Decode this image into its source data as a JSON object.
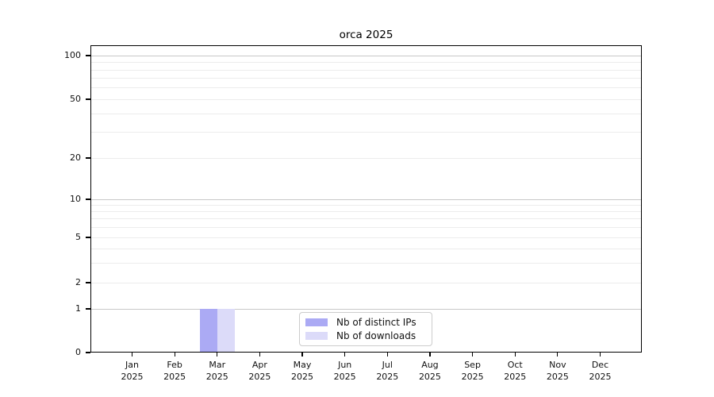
{
  "chart_data": {
    "type": "bar",
    "title": "orca 2025",
    "year_label": "2025",
    "months": [
      "Jan",
      "Feb",
      "Mar",
      "Apr",
      "May",
      "Jun",
      "Jul",
      "Aug",
      "Sep",
      "Oct",
      "Nov",
      "Dec"
    ],
    "series": [
      {
        "name": "Nb of distinct IPs",
        "color": "#abaaf4",
        "values": [
          0,
          0,
          1,
          0,
          0,
          0,
          0,
          0,
          0,
          0,
          0,
          0
        ]
      },
      {
        "name": "Nb of downloads",
        "color": "#dcdbf9",
        "values": [
          0,
          0,
          1,
          0,
          0,
          0,
          0,
          0,
          0,
          0,
          0,
          0
        ]
      }
    ],
    "y_axis": {
      "scale": "symlog",
      "major_ticks": [
        0,
        1,
        2,
        5,
        10,
        20,
        50,
        100
      ],
      "minor_gridlines": [
        3,
        4,
        6,
        7,
        8,
        9,
        30,
        40,
        60,
        70,
        80,
        90
      ],
      "emphasized_gridlines": [
        1,
        10,
        100
      ],
      "range_max_label": "100",
      "range_min_label": "0"
    },
    "legend": {
      "position": "lower center"
    },
    "grid": true,
    "colors": {
      "background": "#ffffff",
      "axis": "#000000",
      "grid_major": "#c8c8c8",
      "grid_minor": "#ececec"
    }
  }
}
